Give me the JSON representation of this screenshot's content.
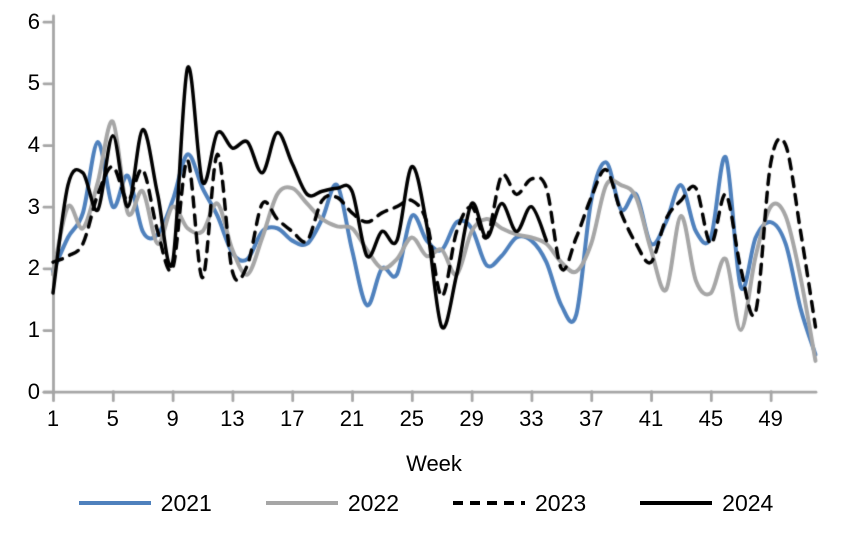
{
  "chart_data": {
    "type": "line",
    "title": "",
    "xlabel": "Week",
    "ylabel": "",
    "xlim": [
      1,
      52
    ],
    "ylim": [
      0,
      6
    ],
    "x_ticks": [
      1,
      5,
      9,
      13,
      17,
      21,
      25,
      29,
      33,
      37,
      41,
      45,
      49
    ],
    "y_ticks": [
      0,
      1,
      2,
      3,
      4,
      5,
      6
    ],
    "grid": false,
    "smoothing": true,
    "legend_position": "bottom",
    "axis_color": "#a6a6a6",
    "series": [
      {
        "name": "2021",
        "color": "#4f81bd",
        "style": "solid",
        "width": 4,
        "start_week": 1,
        "values": [
          1.95,
          2.5,
          2.9,
          4.05,
          3.0,
          3.5,
          2.6,
          2.55,
          3.1,
          3.85,
          3.3,
          2.85,
          2.25,
          2.15,
          2.6,
          2.65,
          2.45,
          2.4,
          2.8,
          3.35,
          2.3,
          1.4,
          2.0,
          1.9,
          2.85,
          2.45,
          2.3,
          2.75,
          2.65,
          2.05,
          2.2,
          2.5,
          2.45,
          2.1,
          1.4,
          1.25,
          3.1,
          3.72,
          2.95,
          3.2,
          2.4,
          2.75,
          3.35,
          2.6,
          2.5,
          3.8,
          1.7,
          2.5,
          2.75,
          2.4,
          1.35,
          0.6
        ]
      },
      {
        "name": "2022",
        "color": "#a6a6a6",
        "style": "solid",
        "width": 4,
        "start_week": 1,
        "values": [
          1.9,
          3.0,
          2.65,
          3.4,
          4.38,
          2.9,
          3.25,
          2.4,
          3.0,
          2.65,
          2.6,
          3.05,
          2.3,
          1.9,
          2.5,
          3.2,
          3.3,
          3.05,
          2.8,
          2.68,
          2.65,
          2.3,
          2.0,
          2.15,
          2.5,
          2.2,
          2.3,
          1.9,
          2.6,
          2.8,
          2.65,
          2.55,
          2.5,
          2.4,
          2.1,
          1.95,
          2.4,
          3.35,
          3.35,
          3.15,
          2.3,
          1.65,
          2.85,
          1.8,
          1.6,
          2.15,
          1.0,
          2.2,
          3.0,
          2.85,
          1.85,
          0.5
        ]
      },
      {
        "name": "2023",
        "color": "#000000",
        "style": "dashed",
        "width": 3.5,
        "start_week": 1,
        "values": [
          2.1,
          2.2,
          2.4,
          3.2,
          3.65,
          3.1,
          3.6,
          2.6,
          2.0,
          3.75,
          1.85,
          3.85,
          1.95,
          2.05,
          3.05,
          2.8,
          2.6,
          2.45,
          3.1,
          3.15,
          2.9,
          2.75,
          2.9,
          3.0,
          3.1,
          2.75,
          1.55,
          2.6,
          3.0,
          2.5,
          3.5,
          3.2,
          3.45,
          3.3,
          2.0,
          2.5,
          3.15,
          3.6,
          2.9,
          2.4,
          2.1,
          2.8,
          3.1,
          3.3,
          2.4,
          3.2,
          2.0,
          1.3,
          3.7,
          4.0,
          2.6,
          1.05
        ]
      },
      {
        "name": "2024",
        "color": "#000000",
        "style": "solid",
        "width": 3.5,
        "start_week": 1,
        "values": [
          1.6,
          3.35,
          3.55,
          2.95,
          4.15,
          3.0,
          4.25,
          3.2,
          2.1,
          5.25,
          3.4,
          4.2,
          3.95,
          4.05,
          3.55,
          4.2,
          3.7,
          3.2,
          3.25,
          3.3,
          3.25,
          2.2,
          2.6,
          2.45,
          3.65,
          2.7,
          1.05,
          1.9,
          3.05,
          2.5,
          3.05,
          2.6,
          3.0,
          2.45
        ]
      }
    ]
  }
}
